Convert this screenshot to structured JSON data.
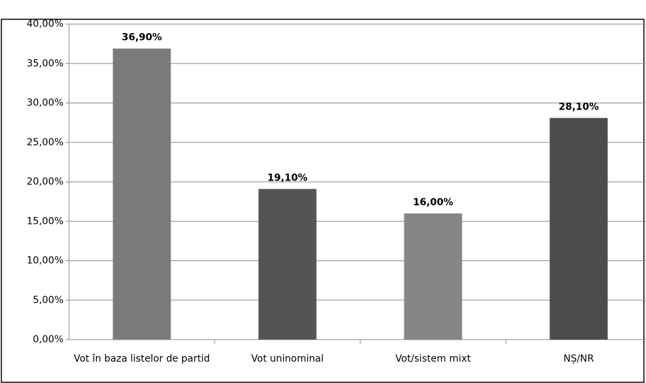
{
  "chart_data": {
    "type": "bar",
    "categories": [
      "Vot în baza listelor de partid",
      "Vot uninominal",
      "Vot/sistem mixt",
      "NȘ/NR"
    ],
    "values": [
      36.9,
      19.1,
      16.0,
      28.1
    ],
    "value_labels": [
      "36,90%",
      "19,10%",
      "16,00%",
      "28,10%"
    ],
    "colors": [
      "#7a7a7a",
      "#545454",
      "#858585",
      "#4c4c4c"
    ],
    "ylim": [
      0,
      40
    ],
    "yticks": [
      {
        "value": 0,
        "label": "0,00%"
      },
      {
        "value": 5,
        "label": "5,00%"
      },
      {
        "value": 10,
        "label": "10,00%"
      },
      {
        "value": 15,
        "label": "15,00%"
      },
      {
        "value": 20,
        "label": "20,00%"
      },
      {
        "value": 25,
        "label": "25,00%"
      },
      {
        "value": 30,
        "label": "30,00%"
      },
      {
        "value": 35,
        "label": "35,00%"
      },
      {
        "value": 40,
        "label": "40,00%"
      }
    ],
    "grid": true
  }
}
